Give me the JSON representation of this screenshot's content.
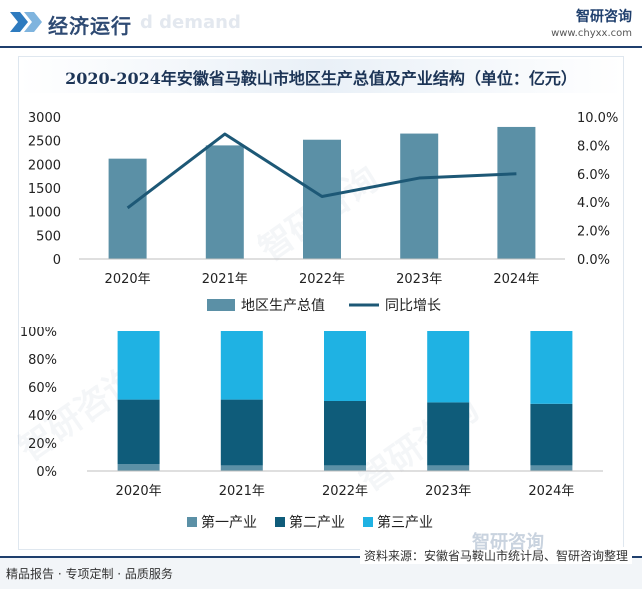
{
  "header": {
    "title": "经济运行",
    "ghost_text": "d demand",
    "brand_name": "智研咨询",
    "brand_url": "www.chyxx.com"
  },
  "chart_data": [
    {
      "type": "bar",
      "title": "2020-2024年安徽省马鞍山市地区生产总值及产业结构（单位：亿元）",
      "categories": [
        "2020年",
        "2021年",
        "2022年",
        "2023年",
        "2024年"
      ],
      "series": [
        {
          "name": "地区生产总值",
          "type": "bar",
          "axis": "left",
          "values": [
            2120,
            2400,
            2520,
            2650,
            2790
          ]
        },
        {
          "name": "同比增长",
          "type": "line",
          "axis": "right",
          "values": [
            3.6,
            8.8,
            4.4,
            5.7,
            6.0
          ]
        }
      ],
      "ylim_left": [
        0,
        3000
      ],
      "yticks_left": [
        "0",
        "500",
        "1000",
        "1500",
        "2000",
        "2500",
        "3000"
      ],
      "ylim_right": [
        0,
        10
      ],
      "yticks_right": [
        "0.0%",
        "2.0%",
        "4.0%",
        "6.0%",
        "8.0%",
        "10.0%"
      ],
      "legend": "bottom",
      "colors": {
        "bar": "#5b90a6",
        "line": "#1d5876"
      }
    },
    {
      "type": "bar",
      "stacked": true,
      "categories": [
        "2020年",
        "2021年",
        "2022年",
        "2023年",
        "2024年"
      ],
      "series": [
        {
          "name": "第一产业",
          "values": [
            5,
            4,
            4,
            4,
            4
          ]
        },
        {
          "name": "第二产业",
          "values": [
            46,
            47,
            46,
            45,
            44
          ]
        },
        {
          "name": "第三产业",
          "values": [
            49,
            49,
            50,
            51,
            52
          ]
        }
      ],
      "ylim": [
        0,
        100
      ],
      "yticks": [
        "0%",
        "20%",
        "40%",
        "60%",
        "80%",
        "100%"
      ],
      "legend": "bottom",
      "colors": {
        "第一产业": "#5b90a6",
        "第二产业": "#0f5c7a",
        "第三产业": "#1fb2e3"
      }
    }
  ],
  "footer": {
    "left_text": "精品报告 · 专项定制 · 品质服务",
    "source": "资料来源：安徽省马鞍山市统计局、智研咨询整理"
  },
  "watermark": {
    "text": "智研咨询"
  },
  "watermark_bottom": {
    "text": "智研咨询"
  }
}
